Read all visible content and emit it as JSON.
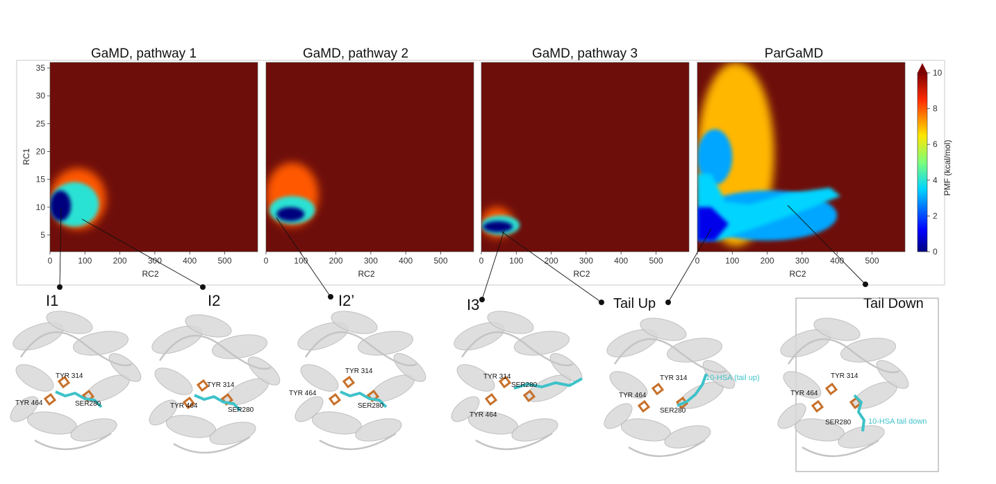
{
  "chart_data": [
    {
      "type": "heatmap",
      "title": "GaMD, pathway 1",
      "xlabel": "RC2",
      "ylabel": "RC1",
      "xlim": [
        0,
        600
      ],
      "ylim": [
        2,
        36
      ],
      "x_ticks": [
        "0",
        "100",
        "200",
        "300",
        "400",
        "500"
      ],
      "y_ticks": [
        "5",
        "10",
        "15",
        "20",
        "25",
        "30",
        "35"
      ],
      "background_value": 10,
      "basins": [
        {
          "label": "I1",
          "x": 35,
          "y": 10.5,
          "min_pmf": 0
        }
      ],
      "regions": [
        {
          "x": [
            0,
            60
          ],
          "y": [
            7.5,
            13
          ],
          "pmf": 0
        },
        {
          "x": [
            0,
            140
          ],
          "y": [
            6.5,
            14.5
          ],
          "pmf": 4
        },
        {
          "x": [
            0,
            160
          ],
          "y": [
            6,
            17
          ],
          "pmf": 8
        }
      ]
    },
    {
      "type": "heatmap",
      "title": "GaMD, pathway 2",
      "xlabel": "RC2",
      "ylabel": "",
      "xlim": [
        0,
        600
      ],
      "ylim": [
        2,
        36
      ],
      "x_ticks": [
        "0",
        "100",
        "200",
        "300",
        "400",
        "500"
      ],
      "y_ticks": [],
      "background_value": 10,
      "basins": [
        {
          "label": "I2'",
          "x": 70,
          "y": 8.5,
          "min_pmf": 0
        }
      ],
      "regions": [
        {
          "x": [
            30,
            110
          ],
          "y": [
            7.5,
            10
          ],
          "pmf": 0
        },
        {
          "x": [
            10,
            140
          ],
          "y": [
            7,
            12
          ],
          "pmf": 4
        },
        {
          "x": [
            0,
            150
          ],
          "y": [
            6.5,
            18
          ],
          "pmf": 8
        }
      ]
    },
    {
      "type": "heatmap",
      "title": "GaMD, pathway 3",
      "xlabel": "RC2",
      "ylabel": "",
      "xlim": [
        0,
        600
      ],
      "ylim": [
        2,
        36
      ],
      "x_ticks": [
        "0",
        "100",
        "200",
        "300",
        "400",
        "500"
      ],
      "y_ticks": [],
      "background_value": 10,
      "basins": [
        {
          "label": "I3",
          "x": 40,
          "y": 6.5,
          "min_pmf": 0
        }
      ],
      "regions": [
        {
          "x": [
            5,
            90
          ],
          "y": [
            5.5,
            7.5
          ],
          "pmf": 0
        },
        {
          "x": [
            0,
            110
          ],
          "y": [
            5,
            8.5
          ],
          "pmf": 4
        },
        {
          "x": [
            0,
            90
          ],
          "y": [
            4.5,
            10
          ],
          "pmf": 8
        }
      ]
    },
    {
      "type": "heatmap",
      "title": "ParGaMD",
      "xlabel": "RC2",
      "ylabel": "",
      "xlim": [
        0,
        600
      ],
      "ylim": [
        2,
        36
      ],
      "x_ticks": [
        "0",
        "100",
        "200",
        "300",
        "400",
        "500"
      ],
      "y_ticks": [],
      "background_value": 10,
      "colorbar": {
        "label": "PMF (kcal/mol)",
        "ticks": [
          "0",
          "2",
          "4",
          "6",
          "8",
          "10"
        ],
        "range": [
          0,
          10
        ]
      },
      "basins": [
        {
          "label": "Tail Up",
          "x": 20,
          "y": 6.5,
          "min_pmf": 0
        },
        {
          "label": "Tail Down",
          "x": 260,
          "y": 10.5,
          "min_pmf": 4
        }
      ],
      "regions": [
        {
          "x": [
            0,
            60
          ],
          "y": [
            4,
            9
          ],
          "pmf": 0
        },
        {
          "x": [
            0,
            400
          ],
          "y": [
            4,
            13
          ],
          "pmf": 3
        },
        {
          "x": [
            0,
            100
          ],
          "y": [
            14,
            24
          ],
          "pmf": 3
        },
        {
          "x": [
            0,
            220
          ],
          "y": [
            3,
            36
          ],
          "pmf": 7
        }
      ]
    }
  ],
  "structures": [
    {
      "label": "I1",
      "residues": [
        "TYR 314",
        "TYR 464",
        "SER280"
      ],
      "ligand_label": ""
    },
    {
      "label": "I2",
      "residues": [
        "TYR 314",
        "TYR 464",
        "SER280"
      ],
      "ligand_label": ""
    },
    {
      "label": "I2’",
      "residues": [
        "TYR 314",
        "TYR 464",
        "SER280"
      ],
      "ligand_label": ""
    },
    {
      "label": "I3",
      "residues": [
        "TYR 314",
        "SER280",
        "TYR 464"
      ],
      "ligand_label": ""
    },
    {
      "label": "Tail Up",
      "residues": [
        "TYR 314",
        "TYR 464",
        "SER280"
      ],
      "ligand_label": "10-HSA (tail up)"
    },
    {
      "label": "Tail Down",
      "residues": [
        "TYR 314",
        "TYR 464",
        "SER280"
      ],
      "ligand_label": "10-HSA tail down"
    }
  ],
  "colors": {
    "background_pmf": "#6e0e0a",
    "ligand": "#3ec2c9",
    "residue": "#c7702a",
    "protein": "#d9d9d9"
  }
}
